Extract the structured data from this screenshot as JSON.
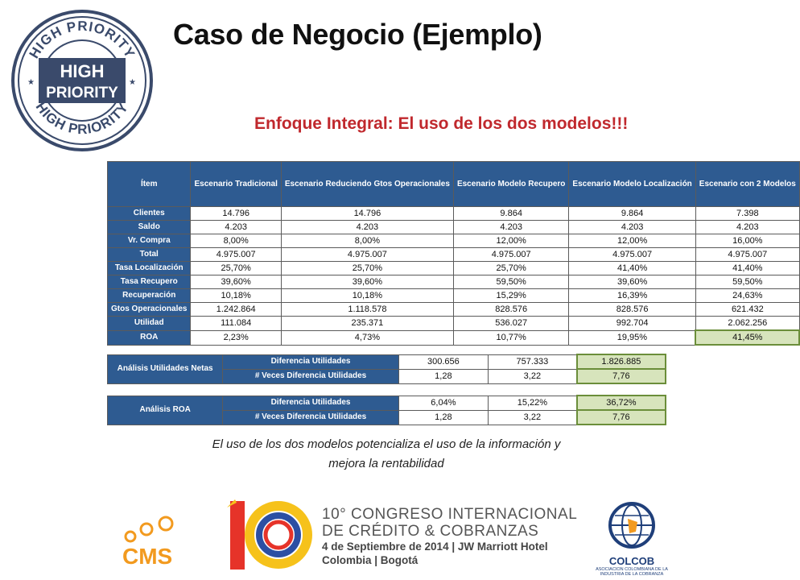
{
  "title": "Caso de Negocio (Ejemplo)",
  "subtitle": "Enfoque Integral: El uso de los dos modelos!!!",
  "stamp": {
    "ring_text_top": "HIGH PRIORITY",
    "ring_text_bottom": "HIGH PRIORITY",
    "center_line1": "HIGH",
    "center_line2": "PRIORITY"
  },
  "table": {
    "headers": [
      "Ítem",
      "Escenario Tradicional",
      "Escenario Reduciendo Gtos Operacionales",
      "Escenario Modelo Recupero",
      "Escenario Modelo Localización",
      "Escenario con 2 Modelos"
    ],
    "rows": [
      {
        "label": "Clientes",
        "values": [
          "14.796",
          "14.796",
          "9.864",
          "9.864",
          "7.398"
        ]
      },
      {
        "label": "Saldo",
        "values": [
          "4.203",
          "4.203",
          "4.203",
          "4.203",
          "4.203"
        ]
      },
      {
        "label": "Vr. Compra",
        "values": [
          "8,00%",
          "8,00%",
          "12,00%",
          "12,00%",
          "16,00%"
        ]
      },
      {
        "label": "Total",
        "values": [
          "4.975.007",
          "4.975.007",
          "4.975.007",
          "4.975.007",
          "4.975.007"
        ]
      },
      {
        "label": "Tasa Localización",
        "values": [
          "25,70%",
          "25,70%",
          "25,70%",
          "41,40%",
          "41,40%"
        ]
      },
      {
        "label": "Tasa Recupero",
        "values": [
          "39,60%",
          "39,60%",
          "59,50%",
          "39,60%",
          "59,50%"
        ]
      },
      {
        "label": "Recuperación",
        "values": [
          "10,18%",
          "10,18%",
          "15,29%",
          "16,39%",
          "24,63%"
        ]
      },
      {
        "label": "Gtos Operacionales",
        "values": [
          "1.242.864",
          "1.118.578",
          "828.576",
          "828.576",
          "621.432"
        ]
      },
      {
        "label": "Utilidad",
        "values": [
          "111.084",
          "235.371",
          "536.027",
          "992.704",
          "2.062.256"
        ]
      },
      {
        "label": "ROA",
        "values": [
          "2,23%",
          "4,73%",
          "10,77%",
          "19,95%",
          "41,45%"
        ]
      }
    ]
  },
  "utilidades": {
    "label": "Análisis Utilidades Netas",
    "rows": [
      {
        "label": "Diferencia Utilidades",
        "values": [
          "300.656",
          "757.333",
          "1.826.885"
        ]
      },
      {
        "label": "# Veces Diferencia Utilidades",
        "values": [
          "1,28",
          "3,22",
          "7,76"
        ]
      }
    ]
  },
  "roa": {
    "label": "Análisis ROA",
    "rows": [
      {
        "label": "Diferencia Utilidades",
        "values": [
          "6,04%",
          "15,22%",
          "36,72%"
        ]
      },
      {
        "label": "# Veces Diferencia Utilidades",
        "values": [
          "1,28",
          "3,22",
          "7,76"
        ]
      }
    ]
  },
  "caption_line1": "El uso de los dos modelos potencializa el uso de la información y",
  "caption_line2": "mejora la rentabilidad",
  "footer": {
    "cms": "CMS",
    "ten": "10",
    "congress_line1": "10° CONGRESO INTERNACIONAL",
    "congress_line2": "DE CRÉDITO & COBRANZAS",
    "congress_line3": "4 de Septiembre de 2014 | JW Marriott Hotel",
    "congress_line4": "Colombia | Bogotá",
    "colcob": "COLCOB",
    "colcob_sub1": "ASOCIACION COLOMBIANA DE LA",
    "colcob_sub2": "INDUSTRIA DE LA COBRANZA"
  },
  "colors": {
    "header_blue": "#2e5b91",
    "highlight_green": "#d7e4bc",
    "subtitle_red": "#c0282d"
  }
}
